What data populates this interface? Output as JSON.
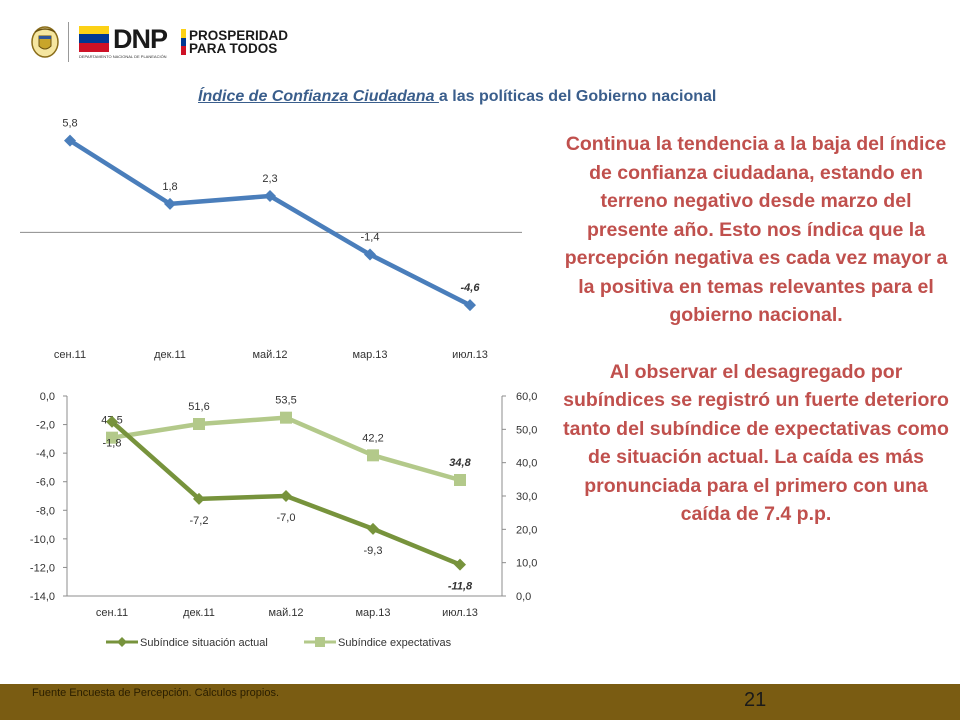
{
  "header": {
    "dnp_logo_text": "DNP",
    "dnp_logo_subtext": "DEPARTAMENTO NACIONAL DE PLANEACIÓN",
    "prosperidad_line1": "PROSPERIDAD",
    "prosperidad_line2": "PARA TODOS",
    "flag_colors": [
      "#FCD116",
      "#003893",
      "#CE1126"
    ]
  },
  "title": {
    "underlined": "Índice de Confianza Ciudadana ",
    "rest": "a las políticas del Gobierno nacional"
  },
  "chart_data": [
    {
      "type": "line",
      "categories": [
        "сен.11",
        "дек.11",
        "май.12",
        "мар.13",
        "июл.13"
      ],
      "series": [
        {
          "values": [
            5.8,
            1.8,
            2.3,
            -1.4,
            -4.6
          ],
          "labels": [
            "5,8",
            "1,8",
            "2,3",
            "-1,4",
            "-4,6"
          ],
          "color": "#4a7ebb"
        }
      ],
      "ylim": [
        -6.3,
        6.6
      ],
      "grid": false
    },
    {
      "type": "line",
      "categories": [
        "сен.11",
        "дек.11",
        "май.12",
        "мар.13",
        "июл.13"
      ],
      "series": [
        {
          "name": "Subíndice situación actual",
          "axis": "left",
          "values": [
            -1.8,
            -7.2,
            -7.0,
            -9.3,
            -11.8
          ],
          "labels": [
            "-1,8",
            "-7,2",
            "-7,0",
            "-9,3",
            "-11,8"
          ],
          "color": "#77933c",
          "marker": "diamond"
        },
        {
          "name": "Subíndice expectativas",
          "axis": "right",
          "values": [
            47.5,
            51.6,
            53.5,
            42.2,
            34.8
          ],
          "labels": [
            "47,5",
            "51,6",
            "53,5",
            "42,2",
            "34,8"
          ],
          "color": "#b3c98a",
          "marker": "square"
        }
      ],
      "yleft": {
        "min": -14,
        "max": 0,
        "ticks": [
          "0,0",
          "-2,0",
          "-4,0",
          "-6,0",
          "-8,0",
          "-10,0",
          "-12,0",
          "-14,0"
        ]
      },
      "yright": {
        "min": 0,
        "max": 60,
        "ticks": [
          "60,0",
          "50,0",
          "40,0",
          "30,0",
          "20,0",
          "10,0",
          "0,0"
        ]
      },
      "legend_position": "bottom",
      "grid": false
    }
  ],
  "analysis": {
    "paragraph1": "Continua la tendencia a la baja del índice de confianza ciudadana, estando en terreno negativo desde marzo del presente año. Esto nos índica que la percepción negativa es cada vez mayor a la positiva en temas relevantes para el gobierno nacional.",
    "paragraph2": "Al observar el desagregado por subíndices se registró un fuerte deterioro tanto del subíndice de expectativas como de situación actual. La caída es más pronunciada para el primero con una caída de 7.4 p.p."
  },
  "footer": {
    "source": "Fuente Encuesta de Percepción. Cálculos propios.",
    "page_number": "21"
  }
}
